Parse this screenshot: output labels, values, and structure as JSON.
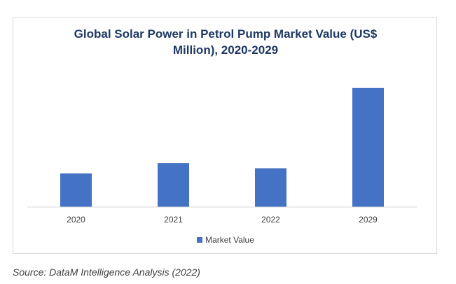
{
  "chart_data": {
    "type": "bar",
    "title_lines": [
      "Global Solar Power in Petrol Pump Market Value (US$",
      "Million), 2020-2029"
    ],
    "categories": [
      "2020",
      "2021",
      "2022",
      "2029"
    ],
    "series": [
      {
        "name": "Market Value",
        "values": [
          39,
          51,
          45,
          138
        ],
        "color": "#4472c4"
      }
    ],
    "ylim": [
      0,
      150
    ],
    "grid": false,
    "legend_position": "bottom"
  },
  "source": "Source: DataM Intelligence Analysis (2022)"
}
